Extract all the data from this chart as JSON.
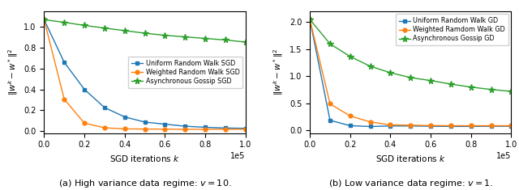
{
  "left": {
    "xlabel": "SGD iterations $k$",
    "ylabel": "$\\|w^k - w^*\\|^2$",
    "xlim": [
      0,
      100000
    ],
    "ylim": [
      -0.02,
      1.15
    ],
    "legend_labels": [
      "Uniform Random Walk SGD",
      "Weighted Random Walk SGD",
      "Asynchronous Gossip SGD"
    ],
    "legend_loc": "center right",
    "colors": [
      "#1f77b4",
      "#ff7f0e",
      "#2ca02c"
    ],
    "uniform_y": [
      1.07,
      0.66,
      0.4,
      0.225,
      0.135,
      0.085,
      0.065,
      0.045,
      0.035,
      0.028,
      0.025
    ],
    "weighted_y": [
      1.07,
      0.305,
      0.075,
      0.03,
      0.02,
      0.018,
      0.017,
      0.016,
      0.016,
      0.016,
      0.016
    ],
    "gossip_y": [
      1.07,
      1.045,
      1.015,
      0.99,
      0.965,
      0.94,
      0.92,
      0.905,
      0.89,
      0.875,
      0.855
    ],
    "caption": "(a) High variance data regime: $v = 10$."
  },
  "right": {
    "xlabel": "SGD iterations $k$",
    "ylabel": "$\\|w^k - w^*\\|^2$",
    "xlim": [
      0,
      100000
    ],
    "ylim": [
      -0.05,
      2.2
    ],
    "legend_labels": [
      "Uniform Random Walk GD",
      "Weighted Ramdom Walk GD",
      "Asynchronous Gossip GD"
    ],
    "legend_loc": "upper right",
    "colors": [
      "#1f77b4",
      "#ff7f0e",
      "#2ca02c"
    ],
    "uniform_y": [
      2.05,
      0.185,
      0.085,
      0.07,
      0.08,
      0.08,
      0.075,
      0.072,
      0.072,
      0.075,
      0.075
    ],
    "weighted_y": [
      2.05,
      0.49,
      0.265,
      0.155,
      0.1,
      0.095,
      0.088,
      0.085,
      0.085,
      0.085,
      0.085
    ],
    "gossip_y": [
      2.05,
      1.6,
      1.365,
      1.185,
      1.065,
      0.975,
      0.92,
      0.855,
      0.8,
      0.755,
      0.72
    ],
    "caption": "(b) Low variance data regime: $v = 1$."
  }
}
